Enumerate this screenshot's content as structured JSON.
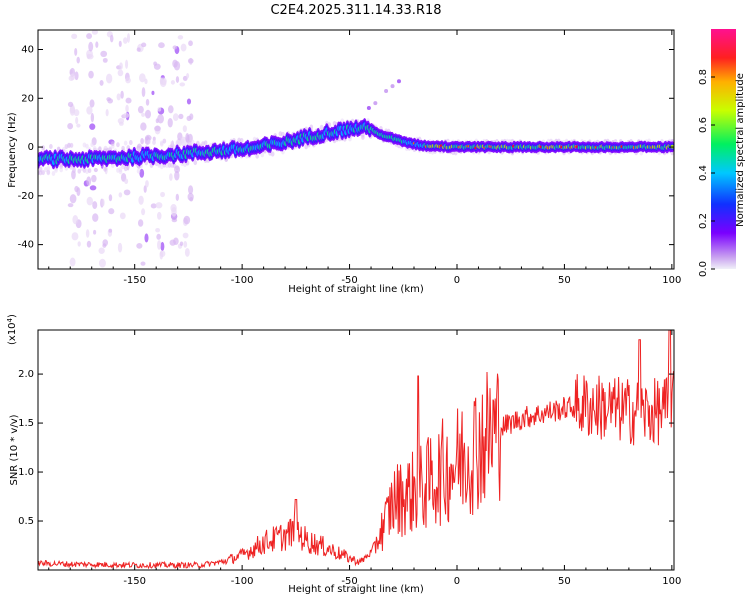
{
  "title": "C2E4.2025.311.14.33.R18",
  "colors": {
    "snr_line": "#ee2222",
    "axis": "#000000",
    "background": "#ffffff"
  },
  "chart_data": [
    {
      "type": "heatmap",
      "xlabel": "Height of straight line (km)",
      "ylabel": "Frequency (Hz)",
      "xlim": [
        -195,
        101
      ],
      "ylim": [
        -50,
        48
      ],
      "xticks": [
        -150,
        -100,
        -50,
        0,
        50,
        100
      ],
      "yticks": [
        -40,
        -20,
        0,
        20,
        40
      ],
      "ridge": {
        "x": [
          -195,
          -170,
          -150,
          -130,
          -110,
          -95,
          -80,
          -70,
          -60,
          -52,
          -45,
          -40,
          -35,
          -28,
          -22,
          -15,
          0,
          20,
          50,
          80,
          100
        ],
        "y": [
          -5,
          -5,
          -4,
          -3,
          -1.5,
          -0.5,
          2,
          4,
          6,
          7,
          8,
          7.5,
          5,
          3,
          1.5,
          0.5,
          0,
          0,
          0,
          0,
          0
        ]
      },
      "colorbar": {
        "label": "Normalized spectral amplitude",
        "range": [
          0,
          1
        ],
        "ticks": [
          0.0,
          0.2,
          0.4,
          0.6,
          0.8
        ]
      }
    },
    {
      "type": "line",
      "xlabel": "Height of straight line (km)",
      "ylabel": "SNR (10 * v/v)",
      "scale_label": "(x10",
      "scale_exp": "4",
      "xlim": [
        -195,
        101
      ],
      "ylim": [
        0,
        2.45
      ],
      "xticks": [
        -150,
        -100,
        -50,
        0,
        50,
        100
      ],
      "yticks": [
        0.5,
        1.0,
        1.5,
        2.0
      ],
      "ytick_labels": [
        "0.5",
        "1.0",
        "1.5",
        "2.0"
      ],
      "series": [
        {
          "name": "SNR",
          "envelope_x": [
            -195,
            -180,
            -150,
            -120,
            -110,
            -100,
            -90,
            -80,
            -75,
            -70,
            -60,
            -50,
            -45,
            -40,
            -37,
            -33,
            -30,
            -25,
            -20,
            -15,
            -10,
            0,
            10,
            20,
            30,
            40,
            50,
            60,
            70,
            80,
            90,
            100,
            101
          ],
          "envelope_y": [
            0.07,
            0.06,
            0.05,
            0.05,
            0.08,
            0.15,
            0.28,
            0.35,
            0.4,
            0.3,
            0.22,
            0.12,
            0.08,
            0.18,
            0.32,
            0.5,
            0.7,
            0.75,
            0.8,
            0.85,
            0.95,
            1.1,
            1.3,
            1.45,
            1.55,
            1.6,
            1.65,
            1.68,
            1.65,
            1.62,
            1.6,
            1.65,
            1.7
          ],
          "peaks": [
            {
              "x": -75,
              "y": 0.72
            },
            {
              "x": -18,
              "y": 1.98
            },
            {
              "x": 85,
              "y": 2.35
            },
            {
              "x": 99,
              "y": 2.45
            }
          ]
        }
      ]
    }
  ]
}
